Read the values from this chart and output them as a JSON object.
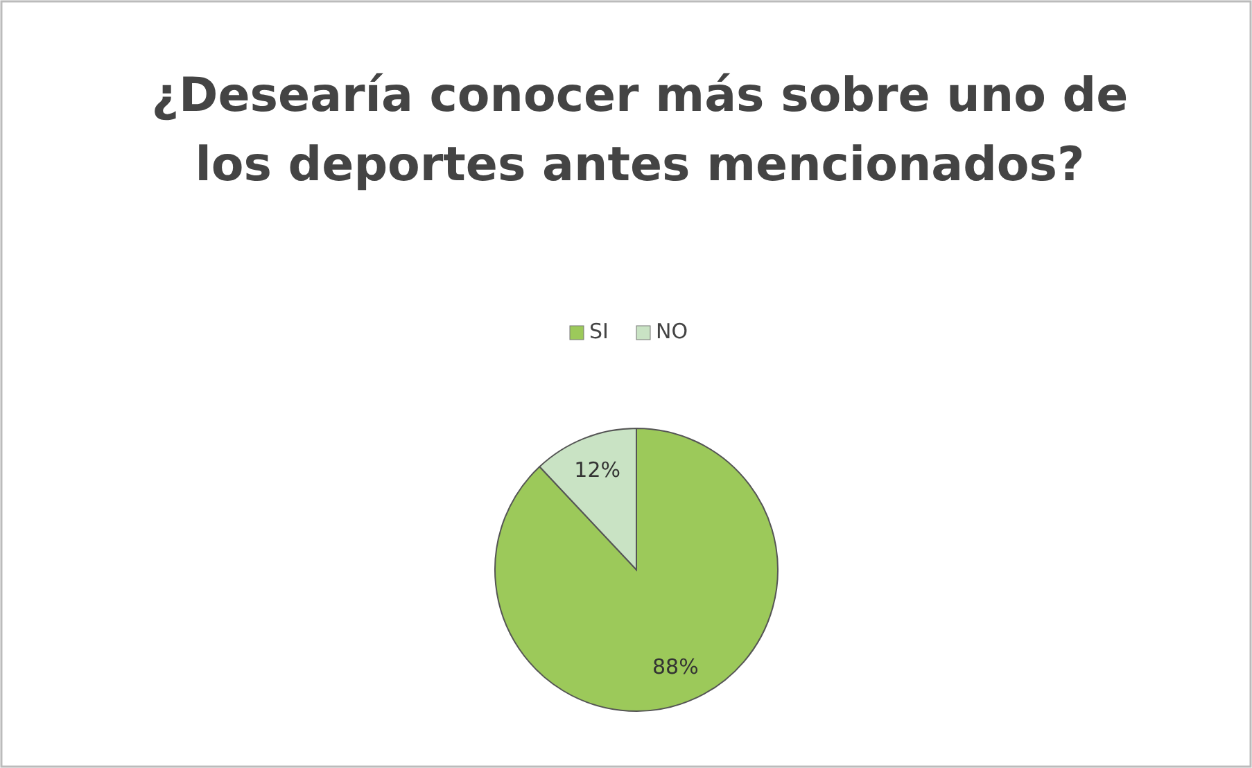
{
  "chart_data": {
    "type": "pie",
    "title": "¿Desearía conocer más sobre uno de los deportes antes mencionados?",
    "categories": [
      "SI",
      "NO"
    ],
    "values": [
      88,
      12
    ],
    "value_labels": [
      "88%",
      "12%"
    ],
    "colors": [
      "#9cc95a",
      "#c9e3c4"
    ],
    "legend": "top"
  }
}
